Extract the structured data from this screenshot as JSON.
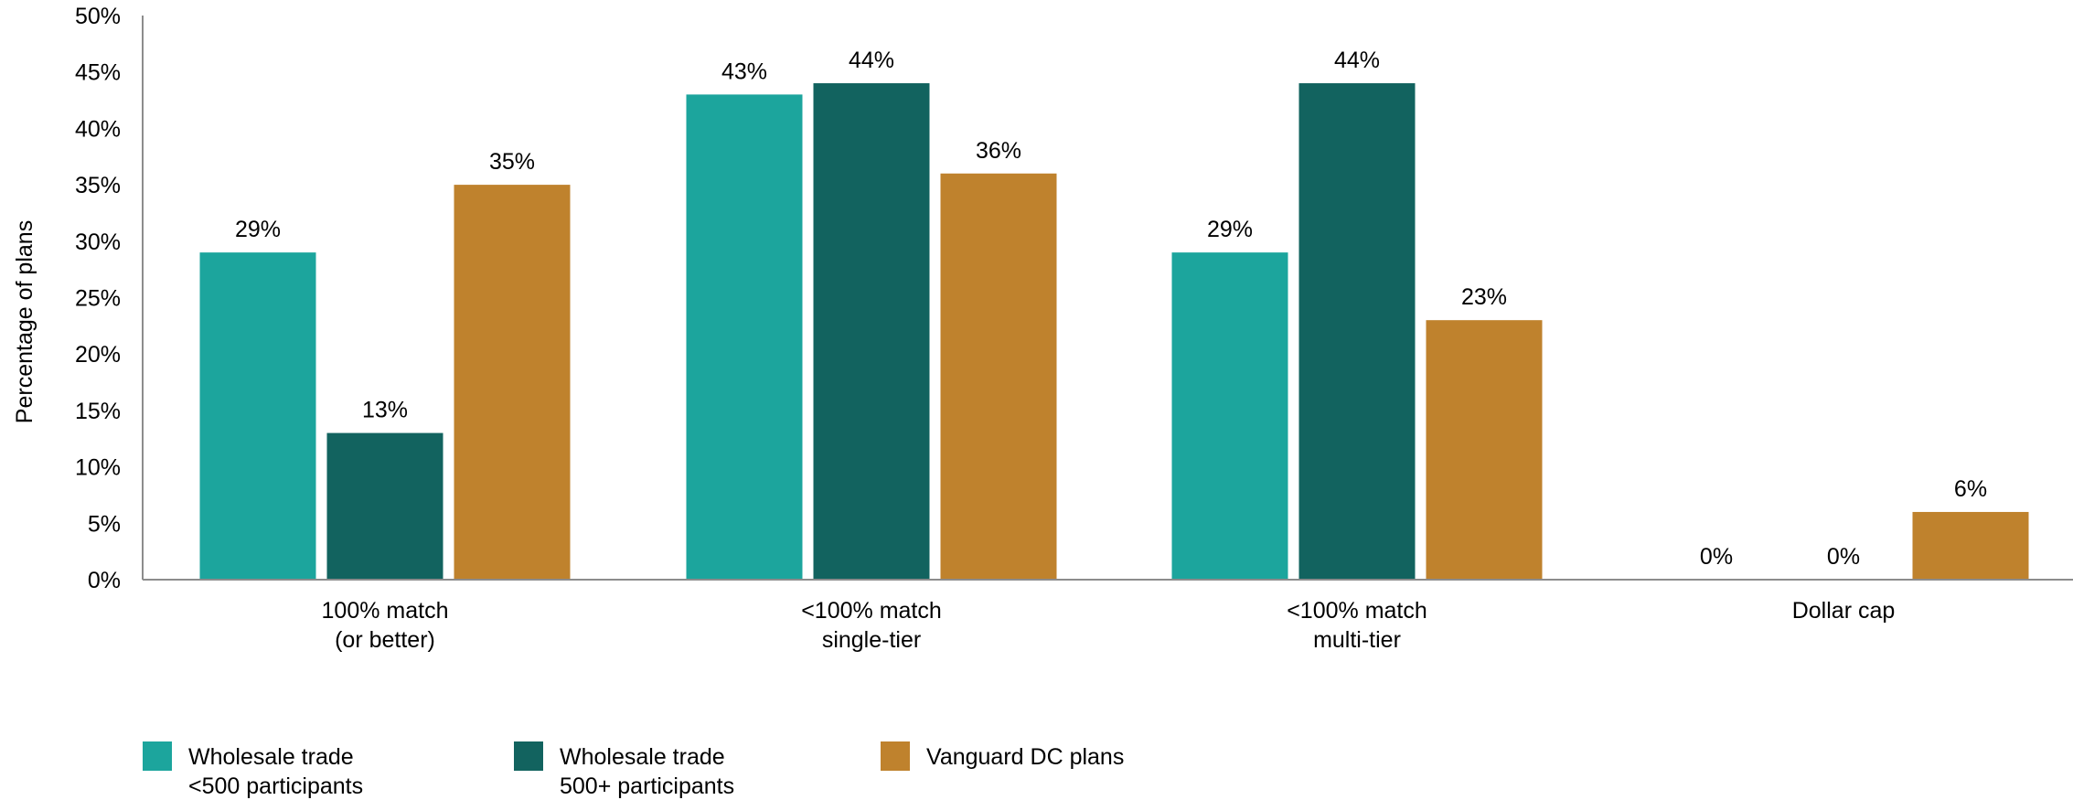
{
  "chart_data": {
    "type": "bar",
    "categories": [
      [
        "100% match",
        "(or better)"
      ],
      [
        "<100% match",
        "single-tier"
      ],
      [
        "<100% match",
        "multi-tier"
      ],
      [
        "Dollar cap"
      ]
    ],
    "series": [
      {
        "name": [
          "Wholesale trade",
          "<500 participants"
        ],
        "color": "#1ca59d",
        "values": [
          29,
          43,
          29,
          0
        ],
        "labels": [
          "29%",
          "43%",
          "29%",
          "0%"
        ]
      },
      {
        "name": [
          "Wholesale trade",
          "500+ participants"
        ],
        "color": "#12635f",
        "values": [
          13,
          44,
          44,
          0
        ],
        "labels": [
          "13%",
          "44%",
          "44%",
          "0%"
        ]
      },
      {
        "name": [
          "Vanguard DC plans"
        ],
        "color": "#bf822d",
        "values": [
          35,
          36,
          23,
          6
        ],
        "labels": [
          "35%",
          "36%",
          "23%",
          "6%"
        ]
      }
    ],
    "ylabel": "Percentage of plans",
    "ylim": [
      0,
      50
    ],
    "yticks": [
      0,
      5,
      10,
      15,
      20,
      25,
      30,
      35,
      40,
      45,
      50
    ],
    "ytick_labels": [
      "0%",
      "5%",
      "10%",
      "15%",
      "20%",
      "25%",
      "30%",
      "35%",
      "40%",
      "45%",
      "50%"
    ],
    "grid": false,
    "legend_position": "bottom-left"
  }
}
